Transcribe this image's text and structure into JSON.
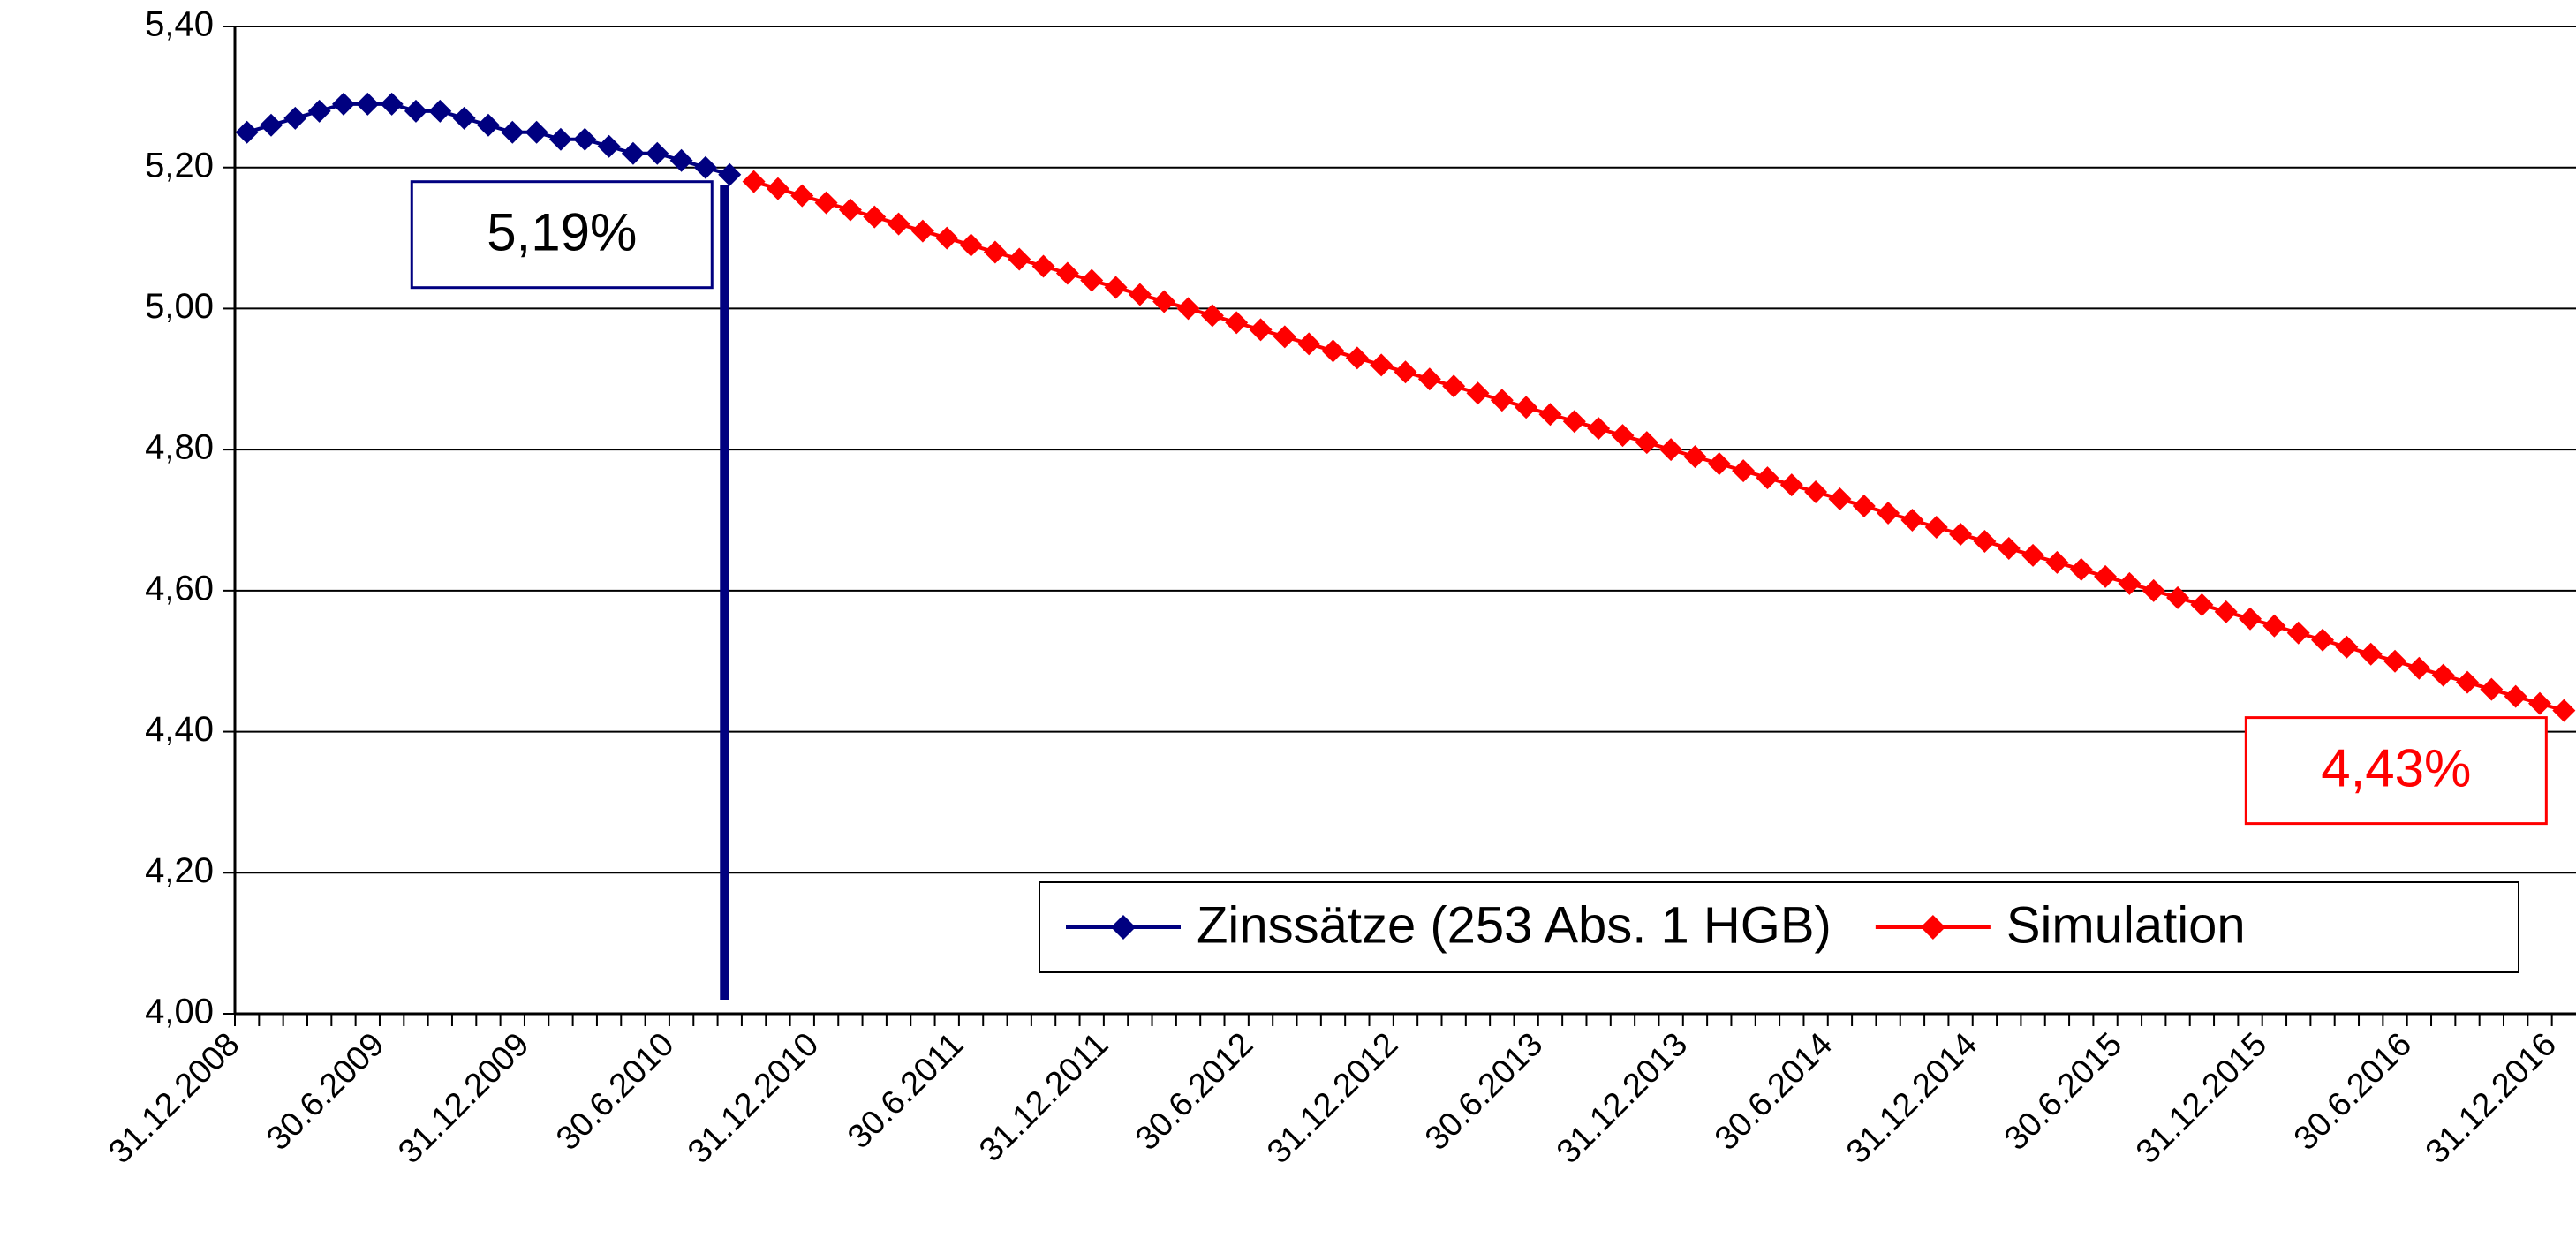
{
  "chart_data": {
    "type": "line",
    "categories": [
      "31.12.2008",
      null,
      null,
      null,
      null,
      null,
      "30.6.2009",
      null,
      null,
      null,
      null,
      null,
      "31.12.2009",
      null,
      null,
      null,
      null,
      null,
      "30.6.2010",
      null,
      null,
      null,
      null,
      null,
      "31.12.2010",
      null,
      null,
      null,
      null,
      null,
      "30.6.2011",
      null,
      null,
      null,
      null,
      null,
      "31.12.2011",
      null,
      null,
      null,
      null,
      null,
      "30.6.2012",
      null,
      null,
      null,
      null,
      null,
      "31.12.2012",
      null,
      null,
      null,
      null,
      null,
      "30.6.2013",
      null,
      null,
      null,
      null,
      null,
      "31.12.2013",
      null,
      null,
      null,
      null,
      null,
      "30.6.2014",
      null,
      null,
      null,
      null,
      null,
      "31.12.2014",
      null,
      null,
      null,
      null,
      null,
      "30.6.2015",
      null,
      null,
      null,
      null,
      null,
      "31.12.2015",
      null,
      null,
      null,
      null,
      null,
      "30.6.2016",
      null,
      null,
      null,
      null,
      null,
      "31.12.2016"
    ],
    "series": [
      {
        "name": "Zinssätze (253 Abs. 1 HGB)",
        "color": "#000080",
        "values": [
          5.25,
          5.26,
          5.27,
          5.28,
          5.29,
          5.29,
          5.29,
          5.28,
          5.28,
          5.27,
          5.26,
          5.25,
          5.25,
          5.24,
          5.24,
          5.23,
          5.22,
          5.22,
          5.21,
          5.2,
          5.19,
          null,
          null,
          null,
          null,
          null,
          null,
          null,
          null,
          null,
          null,
          null,
          null,
          null,
          null,
          null,
          null,
          null,
          null,
          null,
          null,
          null,
          null,
          null,
          null,
          null,
          null,
          null,
          null,
          null,
          null,
          null,
          null,
          null,
          null,
          null,
          null,
          null,
          null,
          null,
          null,
          null,
          null,
          null,
          null,
          null,
          null,
          null,
          null,
          null,
          null,
          null,
          null,
          null,
          null,
          null,
          null,
          null,
          null,
          null,
          null,
          null,
          null,
          null,
          null,
          null,
          null,
          null,
          null,
          null,
          null,
          null,
          null,
          null,
          null,
          null,
          null
        ],
        "value_labels": [
          null,
          null,
          null,
          null,
          null,
          null,
          null,
          null,
          null,
          null,
          null,
          null,
          null,
          null,
          null,
          null,
          null,
          null,
          null,
          null,
          "5,19%",
          null,
          null,
          null,
          null,
          null,
          null,
          null,
          null,
          null,
          null,
          null,
          null,
          null,
          null,
          null,
          null,
          null,
          null,
          null,
          null,
          null,
          null,
          null,
          null,
          null,
          null,
          null,
          null,
          null,
          null,
          null,
          null,
          null,
          null,
          null,
          null,
          null,
          null,
          null,
          null,
          null,
          null,
          null,
          null,
          null,
          null,
          null,
          null,
          null,
          null,
          null,
          null,
          null,
          null,
          null,
          null,
          null,
          null,
          null,
          null,
          null,
          null,
          null,
          null,
          null,
          null,
          null,
          null,
          null,
          null,
          null,
          null,
          null,
          null,
          null,
          null
        ]
      },
      {
        "name": "Simulation",
        "color": "#ff0000",
        "values": [
          null,
          null,
          null,
          null,
          null,
          null,
          null,
          null,
          null,
          null,
          null,
          null,
          null,
          null,
          null,
          null,
          null,
          null,
          null,
          null,
          null,
          5.18,
          5.17,
          5.16,
          5.15,
          5.14,
          5.13,
          5.12,
          5.11,
          5.1,
          5.09,
          5.08,
          5.07,
          5.06,
          5.05,
          5.04,
          5.03,
          5.02,
          5.01,
          5.0,
          4.99,
          4.98,
          4.97,
          4.96,
          4.95,
          4.94,
          4.93,
          4.92,
          4.91,
          4.9,
          4.89,
          4.88,
          4.87,
          4.86,
          4.85,
          4.84,
          4.83,
          4.82,
          4.81,
          4.8,
          4.79,
          4.78,
          4.77,
          4.76,
          4.75,
          4.74,
          4.73,
          4.72,
          4.71,
          4.7,
          4.69,
          4.68,
          4.67,
          4.66,
          4.65,
          4.64,
          4.63,
          4.62,
          4.61,
          4.6,
          4.59,
          4.58,
          4.57,
          4.56,
          4.55,
          4.54,
          4.53,
          4.52,
          4.51,
          4.5,
          4.49,
          4.48,
          4.47,
          4.46,
          4.45,
          4.44,
          4.43
        ],
        "value_labels": [
          null,
          null,
          null,
          null,
          null,
          null,
          null,
          null,
          null,
          null,
          null,
          null,
          null,
          null,
          null,
          null,
          null,
          null,
          null,
          null,
          null,
          null,
          null,
          null,
          null,
          null,
          null,
          null,
          null,
          null,
          null,
          null,
          null,
          null,
          null,
          null,
          null,
          null,
          null,
          null,
          null,
          null,
          null,
          null,
          null,
          null,
          null,
          null,
          null,
          null,
          null,
          null,
          null,
          null,
          null,
          null,
          null,
          null,
          null,
          null,
          null,
          null,
          null,
          null,
          null,
          null,
          null,
          null,
          null,
          null,
          null,
          null,
          null,
          null,
          null,
          null,
          null,
          null,
          null,
          null,
          null,
          null,
          null,
          null,
          null,
          null,
          null,
          null,
          null,
          null,
          null,
          null,
          null,
          null,
          null,
          null,
          "4,43%"
        ]
      }
    ],
    "ylim": [
      4,
      5.4
    ],
    "yticks": [
      {
        "value": 4,
        "label": "4,00"
      },
      {
        "value": 4.2,
        "label": "4,20"
      },
      {
        "value": 4.4,
        "label": "4,40"
      },
      {
        "value": 4.6,
        "label": "4,60"
      },
      {
        "value": 4.8,
        "label": "4,80"
      },
      {
        "value": 5,
        "label": "5,00"
      },
      {
        "value": 5.2,
        "label": "5,20"
      },
      {
        "value": 5.4,
        "label": "5,40"
      }
    ],
    "grid": true,
    "legend": "bottom-right"
  }
}
